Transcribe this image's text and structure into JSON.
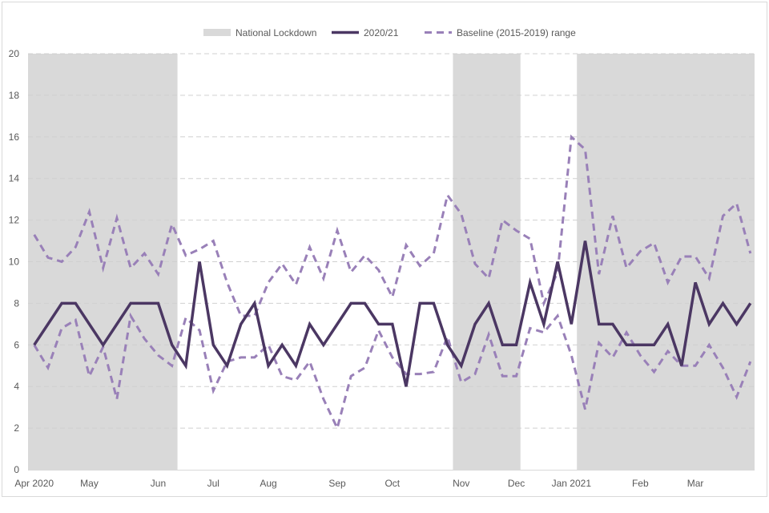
{
  "chart_data": {
    "type": "line",
    "title": "",
    "xlabel": "",
    "ylabel": "",
    "ylim": [
      0,
      20
    ],
    "yticks": [
      0,
      2,
      4,
      6,
      8,
      10,
      12,
      14,
      16,
      18,
      20
    ],
    "grid": true,
    "legend_position": "top",
    "x_tick_labels": [
      {
        "week_index": 0,
        "label": "Apr 2020"
      },
      {
        "week_index": 4,
        "label": "May"
      },
      {
        "week_index": 9,
        "label": "Jun"
      },
      {
        "week_index": 13,
        "label": "Jul"
      },
      {
        "week_index": 17,
        "label": "Aug"
      },
      {
        "week_index": 22,
        "label": "Sep"
      },
      {
        "week_index": 26,
        "label": "Oct"
      },
      {
        "week_index": 31,
        "label": "Nov"
      },
      {
        "week_index": 35,
        "label": "Dec"
      },
      {
        "week_index": 39,
        "label": "Jan 2021"
      },
      {
        "week_index": 44,
        "label": "Feb"
      },
      {
        "week_index": 48,
        "label": "Mar"
      }
    ],
    "lockdowns": [
      {
        "start_week": -0.45,
        "end_week": 10.4
      },
      {
        "start_week": 30.4,
        "end_week": 35.3
      },
      {
        "start_week": 39.4,
        "end_week": 52.3
      }
    ],
    "x_range": [
      -0.45,
      52.3
    ],
    "legend": {
      "lockdown": "National Lockdown",
      "current": "2020/21",
      "baseline": "Baseline (2015-2019) range"
    },
    "colors": {
      "current": "#4b3763",
      "baseline": "#9980b8",
      "lockdown": "#d9d9d9",
      "grid": "#d0d0d0"
    },
    "series": [
      {
        "name": "2020/21",
        "values": [
          6,
          7,
          8,
          8,
          7,
          6,
          7,
          8,
          8,
          8,
          6,
          5,
          10,
          6,
          5,
          7,
          8,
          5,
          6,
          5,
          7,
          6,
          7,
          8,
          8,
          7,
          7,
          4,
          8,
          8,
          6,
          5,
          7,
          8,
          6,
          6,
          9,
          7,
          10,
          7,
          11,
          7,
          7,
          6,
          6,
          6,
          7,
          5,
          9,
          7,
          8,
          7,
          8
        ]
      },
      {
        "name": "Baseline upper",
        "values": [
          11.3,
          10.2,
          10.0,
          10.7,
          12.4,
          9.7,
          12.1,
          9.7,
          10.4,
          9.4,
          11.8,
          10.3,
          10.6,
          11.0,
          9.0,
          7.4,
          7.4,
          9.0,
          9.9,
          8.9,
          10.7,
          9.2,
          11.5,
          9.5,
          10.3,
          9.6,
          8.3,
          10.8,
          9.8,
          10.4,
          13.2,
          12.3,
          9.9,
          9.2,
          12.0,
          11.5,
          11.1,
          8.0,
          9.5,
          16.0,
          15.4,
          9.4,
          12.2,
          9.7,
          10.5,
          10.9,
          9.0,
          10.25,
          10.25,
          9.2,
          12.2,
          12.8,
          10.4
        ]
      },
      {
        "name": "Baseline lower",
        "values": [
          6.0,
          4.9,
          6.8,
          7.2,
          4.5,
          5.9,
          3.4,
          7.4,
          6.3,
          5.5,
          5.0,
          7.3,
          6.7,
          3.8,
          5.2,
          5.4,
          5.4,
          6.0,
          4.5,
          4.3,
          5.2,
          3.4,
          2.0,
          4.5,
          4.9,
          6.7,
          5.4,
          4.6,
          4.6,
          4.7,
          6.4,
          4.2,
          4.6,
          6.5,
          4.5,
          4.5,
          6.8,
          6.6,
          7.4,
          5.5,
          2.9,
          6.1,
          5.4,
          6.6,
          5.5,
          4.7,
          5.7,
          5.0,
          5.0,
          6.0,
          4.9,
          3.5,
          5.2
        ]
      }
    ]
  }
}
